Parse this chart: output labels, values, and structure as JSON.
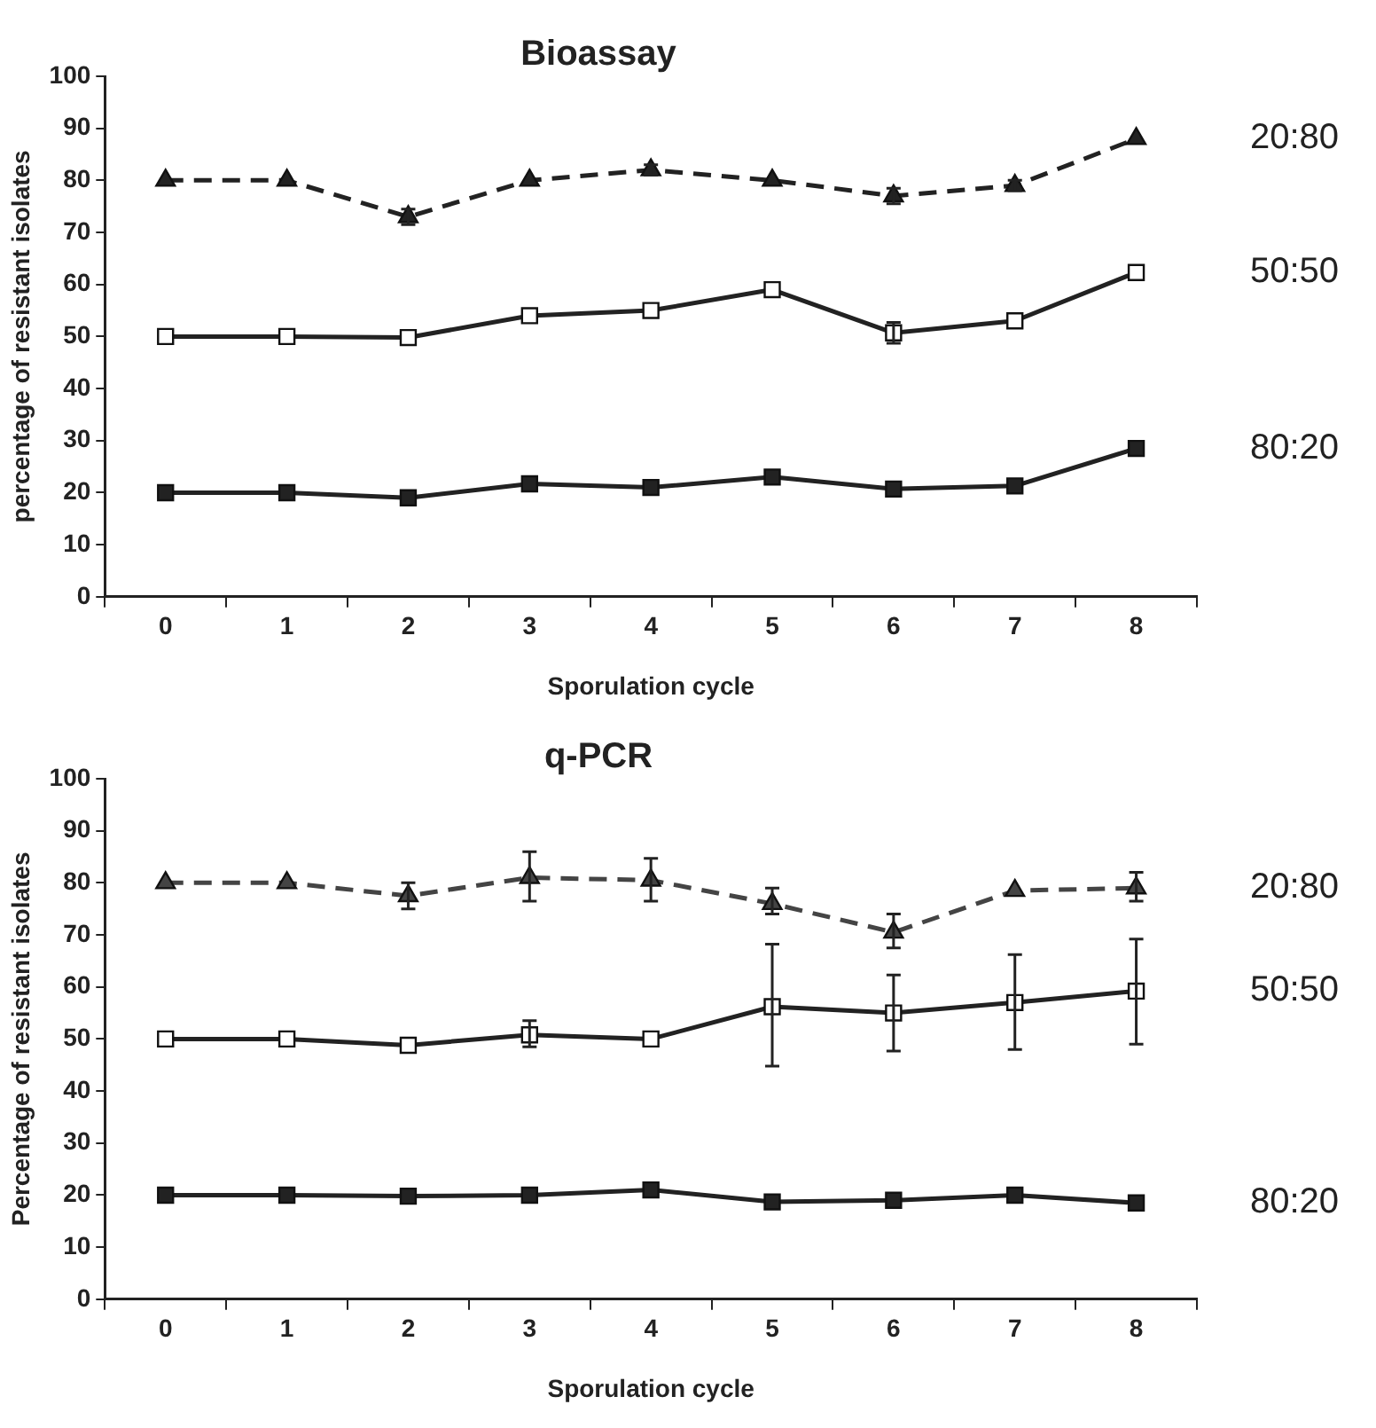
{
  "chart_data": [
    {
      "type": "line",
      "title": "Bioassay",
      "xlabel": "Sporulation cycle",
      "ylabel": "percentage of resistant isolates",
      "categories": [
        "0",
        "1",
        "2",
        "3",
        "4",
        "5",
        "6",
        "7",
        "8"
      ],
      "ylim": [
        0,
        100
      ],
      "yticks": [
        0,
        10,
        20,
        30,
        40,
        50,
        60,
        70,
        80,
        90,
        100
      ],
      "grid": false,
      "legend": false,
      "series": [
        {
          "name": "20:80",
          "color": "#222222",
          "marker": "triangle",
          "line_style": "dashed",
          "values": [
            80,
            80,
            73,
            80,
            82,
            80,
            77,
            79,
            88
          ],
          "errors": [
            null,
            null,
            1.5,
            null,
            1,
            null,
            1.5,
            1,
            null
          ]
        },
        {
          "name": "50:50",
          "color": "#222222",
          "colors": [
            "#ffffff",
            "#ffffff",
            "#ffffff",
            "#ffffff",
            "#ffffff",
            "#ffffff",
            "#ffffff",
            "#ffffff",
            "#ffffff"
          ],
          "marker": "square",
          "line_style": "solid",
          "values": [
            50,
            50,
            49.8,
            54,
            55,
            59,
            50.7,
            53,
            62.3
          ],
          "errors": [
            null,
            null,
            null,
            null,
            null,
            null,
            2,
            null,
            null
          ]
        },
        {
          "name": "80:20",
          "color": "#222222",
          "marker": "square",
          "line_style": "solid",
          "values": [
            20,
            20,
            19,
            21.7,
            21,
            23,
            20.7,
            21.3,
            28.5
          ]
        }
      ]
    },
    {
      "type": "line",
      "title": "q-PCR",
      "xlabel": "Sporulation cycle",
      "ylabel": "Percentage of resistant isolates",
      "categories": [
        "0",
        "1",
        "2",
        "3",
        "4",
        "5",
        "6",
        "7",
        "8"
      ],
      "ylim": [
        0,
        100
      ],
      "yticks": [
        0,
        10,
        20,
        30,
        40,
        50,
        60,
        70,
        80,
        90,
        100
      ],
      "grid": false,
      "legend": false,
      "series": [
        {
          "name": "20:80",
          "color": "#444444",
          "marker": "triangle",
          "line_style": "dashed",
          "values": [
            80,
            80,
            77.5,
            81,
            80.5,
            76,
            70.5,
            78.5,
            79
          ],
          "errors": [
            null,
            null,
            [
              75,
              80
            ],
            [
              76.5,
              86
            ],
            [
              76.5,
              84.7
            ],
            [
              74,
              79
            ],
            [
              67.5,
              74
            ],
            null,
            [
              76.5,
              82
            ]
          ]
        },
        {
          "name": "50:50",
          "color": "#222222",
          "colors": [
            "#ffffff",
            "#ffffff",
            "#ffffff",
            "#ffffff",
            "#ffffff",
            "#ffffff",
            "#ffffff",
            "#ffffff",
            "#ffffff"
          ],
          "marker": "square",
          "line_style": "solid",
          "values": [
            50,
            50,
            48.8,
            50.8,
            50,
            56.2,
            55,
            57,
            59.2
          ],
          "errors": [
            null,
            null,
            null,
            [
              48.5,
              53.5
            ],
            null,
            [
              44.8,
              68.2
            ],
            [
              47.7,
              62.3
            ],
            [
              48,
              66.2
            ],
            [
              49,
              69.2
            ]
          ]
        },
        {
          "name": "80:20",
          "color": "#222222",
          "marker": "square",
          "line_style": "solid",
          "values": [
            20,
            20,
            19.8,
            20,
            21,
            18.7,
            19,
            20,
            18.5
          ]
        }
      ]
    }
  ]
}
